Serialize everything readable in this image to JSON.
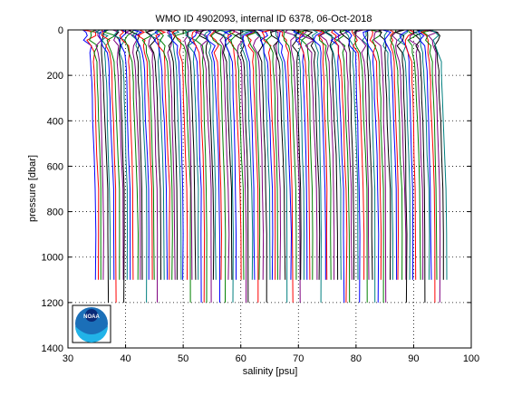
{
  "chart_data": {
    "type": "line",
    "title": "WMO ID 4902093, internal ID 6378, 06-Oct-2018",
    "xlabel": "salinity [psu]",
    "ylabel": "pressure [dbar]",
    "xlim": [
      30,
      100
    ],
    "ylim": [
      0,
      1400
    ],
    "y_inverted": true,
    "xticks": [
      30,
      40,
      50,
      60,
      70,
      80,
      90,
      100
    ],
    "yticks": [
      0,
      200,
      400,
      600,
      800,
      1000,
      1200,
      1400
    ],
    "grid": "dotted",
    "profiles": {
      "description": "",
      "count": 120,
      "first_offset_start": 34.0,
      "last_offset_start": 94.8,
      "surface_range": [
        33.5,
        35.2
      ],
      "max_pressure_values": [
        1100,
        1200
      ],
      "line_colors": [
        "#0000ff",
        "#ff0000",
        "#008000",
        "#7f007f",
        "#000000",
        "#007f7f"
      ]
    },
    "logo": {
      "text": "NOAA",
      "name": "noaa-logo"
    }
  }
}
